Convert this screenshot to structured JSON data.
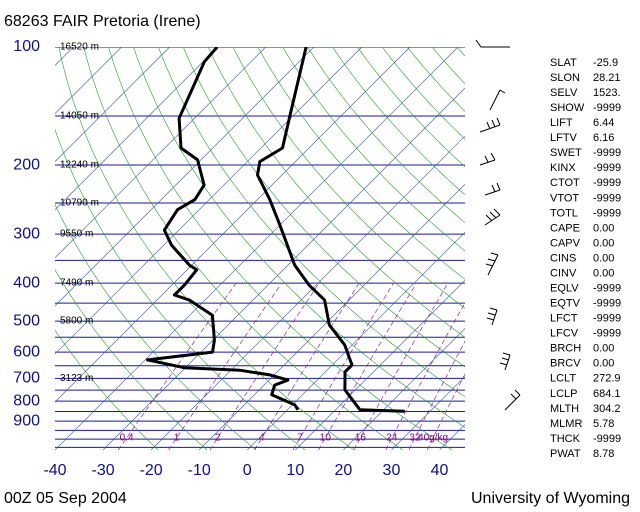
{
  "chart_data": {
    "type": "skewt",
    "title": "68263 FAIR Pretoria (Irene)",
    "footer_left": "00Z 05 Sep 2004",
    "footer_right": "University of Wyoming",
    "xlim": [
      -40,
      45.3
    ],
    "xticks": [
      -40,
      -30,
      -20,
      -10,
      0,
      10,
      20,
      30,
      40
    ],
    "ylim": [
      1066,
      100
    ],
    "yticks": [
      100,
      200,
      300,
      400,
      500,
      600,
      700,
      800,
      900
    ],
    "log_y": true,
    "isobars": [
      100,
      150,
      200,
      250,
      300,
      350,
      400,
      450,
      500,
      550,
      600,
      650,
      700,
      750,
      800,
      850,
      900,
      950,
      1000,
      1050
    ],
    "heights": [
      {
        "pressure": 100,
        "label": "16520 m"
      },
      {
        "pressure": 150,
        "label": "14050 m"
      },
      {
        "pressure": 200,
        "label": "12240 m"
      },
      {
        "pressure": 250,
        "label": "10790 m"
      },
      {
        "pressure": 300,
        "label": "9550 m"
      },
      {
        "pressure": 400,
        "label": "7490 m"
      },
      {
        "pressure": 500,
        "label": "5800 m"
      },
      {
        "pressure": 700,
        "label": "3123 m"
      }
    ],
    "mixing_ratio_lines": [
      {
        "value": 0.4,
        "label": "0.4"
      },
      {
        "value": 1,
        "label": "1"
      },
      {
        "value": 2,
        "label": "2"
      },
      {
        "value": 4,
        "label": "4"
      },
      {
        "value": 7,
        "label": "7"
      },
      {
        "value": 10,
        "label": "10"
      },
      {
        "value": 16,
        "label": "16"
      },
      {
        "value": 24,
        "label": "24"
      },
      {
        "value": 32,
        "label": "32"
      },
      {
        "value": 40,
        "label": "40g/kg"
      }
    ],
    "series": [
      {
        "color": "#000000",
        "pressure": [
          100,
          154,
          181,
          196,
          212,
          245,
          284,
          360,
          405,
          442,
          512,
          575,
          647,
          674,
          749,
          842,
          849
        ],
        "values": [
          -71.6,
          -59.9,
          -55.5,
          -57.4,
          -55.1,
          -47.4,
          -40.1,
          -28.6,
          -21.4,
          -15.1,
          -8.9,
          -1.6,
          4.1,
          4.1,
          7.8,
          15.1,
          24.7
        ]
      },
      {
        "color": "#000000",
        "pressure": [
          100,
          109,
          152,
          181,
          194,
          225,
          245,
          260,
          293,
          320,
          360,
          370,
          404,
          429,
          442,
          483,
          559,
          600,
          628,
          658,
          667,
          686,
          707,
          728,
          771,
          818,
          842
        ],
        "values": [
          -90.1,
          -89.7,
          -83.2,
          -76.6,
          -70.7,
          -64.1,
          -63.0,
          -64.5,
          -63.0,
          -58.4,
          -50.5,
          -48.0,
          -47.4,
          -47.4,
          -43.2,
          -35.3,
          -29.7,
          -27.6,
          -39.5,
          -30.1,
          -18.2,
          -10.9,
          -6.1,
          -7.8,
          -6.4,
          0.5,
          2.2
        ]
      }
    ]
  },
  "indices": [
    [
      "SLAT",
      "-25.9"
    ],
    [
      "SLON",
      "28.21"
    ],
    [
      "SELV",
      "1523."
    ],
    [
      "SHOW",
      "-9999"
    ],
    [
      "LIFT",
      "6.44"
    ],
    [
      "LFTV",
      "6.16"
    ],
    [
      "SWET",
      "-9999"
    ],
    [
      "KINX",
      "-9999"
    ],
    [
      "CTOT",
      "-9999"
    ],
    [
      "VTOT",
      "-9999"
    ],
    [
      "TOTL",
      "-9999"
    ],
    [
      "CAPE",
      "0.00"
    ],
    [
      "CAPV",
      "0.00"
    ],
    [
      "CINS",
      "0.00"
    ],
    [
      "CINV",
      "0.00"
    ],
    [
      "EQLV",
      "-9999"
    ],
    [
      "EQTV",
      "-9999"
    ],
    [
      "LFCT",
      "-9999"
    ],
    [
      "LFCV",
      "-9999"
    ],
    [
      "BRCH",
      "0.00"
    ],
    [
      "BRCV",
      "0.00"
    ],
    [
      "LCLT",
      "272.9"
    ],
    [
      "LCLP",
      "684.1"
    ],
    [
      "MLTH",
      "304.2"
    ],
    [
      "MLMR",
      "5.78"
    ],
    [
      "THCK",
      "-9999"
    ],
    [
      "PWAT",
      "8.78"
    ]
  ]
}
